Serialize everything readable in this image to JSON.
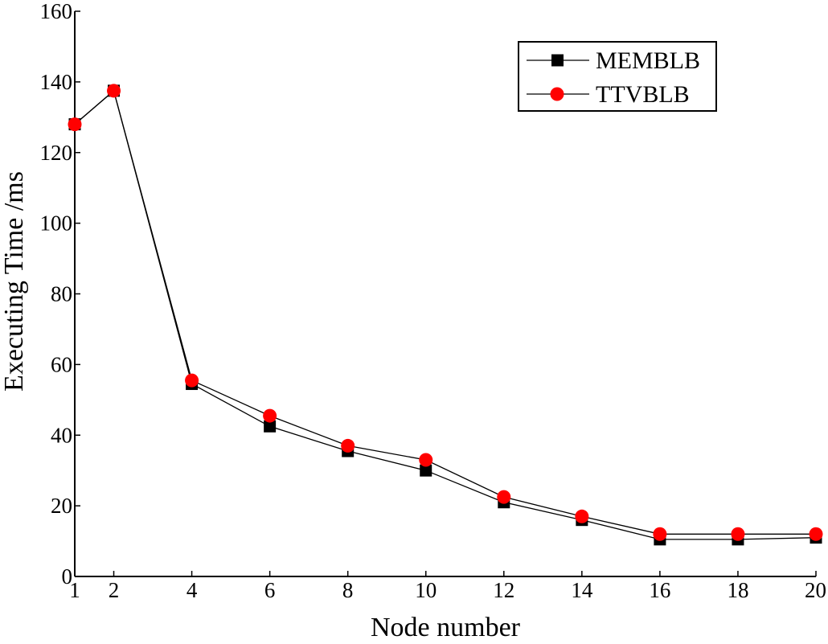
{
  "chart_data": {
    "type": "line",
    "xlabel": "Node number",
    "ylabel": "Executing Time /ms",
    "xlim": [
      1,
      20
    ],
    "ylim": [
      0,
      160
    ],
    "x_ticks": [
      1,
      2,
      4,
      6,
      8,
      10,
      12,
      14,
      16,
      18,
      20
    ],
    "y_ticks": [
      0,
      20,
      40,
      60,
      80,
      100,
      120,
      140,
      160
    ],
    "x": [
      1,
      2,
      4,
      6,
      8,
      10,
      12,
      14,
      16,
      18,
      20
    ],
    "series": [
      {
        "name": "MEMBLB",
        "marker": "square",
        "color": "#000000",
        "values": [
          128,
          137.5,
          54.5,
          42.5,
          35.5,
          30,
          21,
          16,
          10.5,
          10.5,
          11
        ]
      },
      {
        "name": "TTVBLB",
        "marker": "circle",
        "color": "#ff0000",
        "values": [
          128,
          137.5,
          55.5,
          45.5,
          37,
          33,
          22.5,
          17,
          12,
          12,
          12
        ]
      }
    ],
    "legend_position": "top-right",
    "grid": false
  }
}
